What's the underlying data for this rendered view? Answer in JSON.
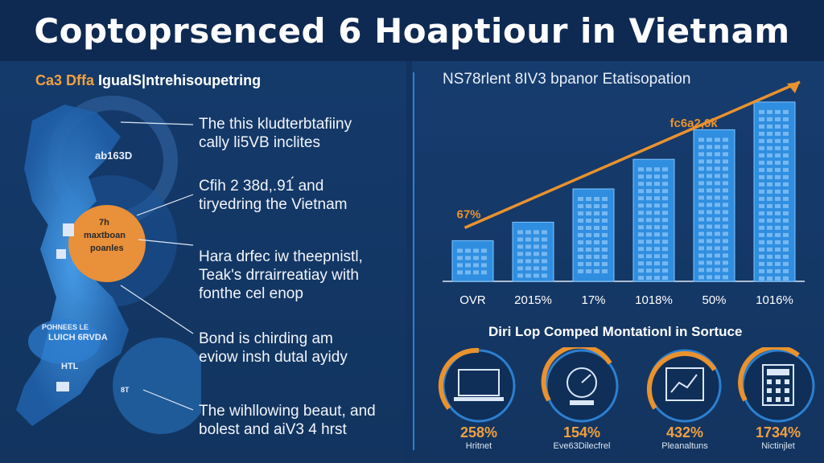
{
  "title": "Coptoprsenced 6 Hoaptiour in Vietnam",
  "left_panel": {
    "title_accent": "Ca3 Dffa",
    "title_rest": " IgualS|ntrehisoupetring",
    "map_labels": [
      "ab163D",
      "7h",
      "maxtboan",
      "poanles",
      "POHNEES LE",
      "LUICH 6RVDA",
      "HTL",
      "8T"
    ],
    "callouts": [
      {
        "line1": "The this kludterbtafiiny",
        "line2": "cally li5VB inclites"
      },
      {
        "line1": "Cfih 2 38d,.91́ and",
        "line2": "tiryedring the Vietnam"
      },
      {
        "line1": "Hara drfec iw theepnistl,",
        "line2": "Teak's drrairreatiay with",
        "line3": "fonthe cel enop"
      },
      {
        "line1": "Bond is chirding am",
        "line2": "eviow insh dutal ayidy"
      },
      {
        "line1": "The wihllowing beaut, and",
        "line2": "bolest and aiV3 4 hrst"
      }
    ]
  },
  "right_panel": {
    "chart_title": "NS78rlent 8IV3 bpanor Etatisopation",
    "bottom_title": "Diri Lop Comped Montationl in Sortuce",
    "icons": [
      {
        "icon": "laptop-icon",
        "pct": "258%",
        "caption": "Hritnet"
      },
      {
        "icon": "gauge-icon",
        "pct": "154%",
        "caption": "Eve63Dilecfrel"
      },
      {
        "icon": "chart-frame-icon",
        "pct": "432%",
        "caption": "Pleanaltuns"
      },
      {
        "icon": "calculator-icon",
        "pct": "1734%",
        "caption": "Nictinjlet"
      }
    ]
  },
  "chart_data": {
    "type": "bar",
    "title": "NS78rlent 8IV3 bpanor Etatisopation",
    "categories": [
      "OVR",
      "2015%",
      "17%",
      "1018%",
      "50%",
      "1016%"
    ],
    "values": [
      22,
      32,
      50,
      66,
      82,
      97
    ],
    "ylim": [
      0,
      100
    ],
    "annotations": [
      "67%",
      "fc6a2,0k"
    ],
    "trend_arrow": true,
    "colors": {
      "bar": "#2f8ee0",
      "bar_top": "#7fc4ff",
      "arrow": "#e9922e"
    }
  }
}
